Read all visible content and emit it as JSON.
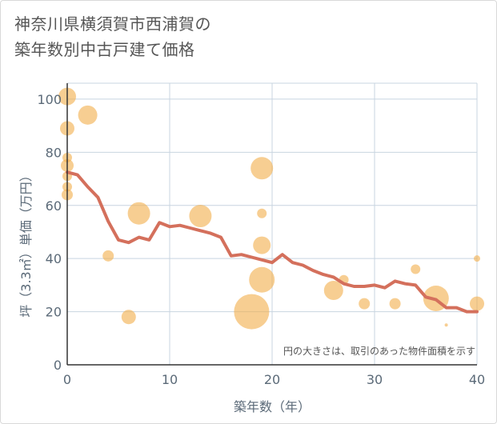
{
  "title_lines": [
    "神奈川県横須賀市西浦賀の",
    "築年数別中古戸建て価格"
  ],
  "chart_data": {
    "type": "scatter",
    "title": "神奈川県横須賀市西浦賀の築年数別中古戸建て価格",
    "xlabel": "築年数（年）",
    "ylabel": "坪（3.3㎡）単価（万円）",
    "xlim": [
      0,
      40
    ],
    "ylim": [
      0,
      106
    ],
    "x_ticks": [
      0,
      10,
      20,
      30,
      40
    ],
    "y_ticks": [
      0,
      20,
      40,
      60,
      80,
      100
    ],
    "grid": true,
    "annotation": "円の大きさは、取引のあった物件面積を示す",
    "colors": {
      "points": "#f2b04f",
      "line": "#d4705c",
      "grid": "#c8d4e0",
      "axis": "#333333"
    },
    "series": [
      {
        "type": "scatter",
        "points": [
          {
            "x": 0,
            "y": 101,
            "size": 11
          },
          {
            "x": 0,
            "y": 89,
            "size": 9
          },
          {
            "x": 0,
            "y": 78,
            "size": 6
          },
          {
            "x": 0,
            "y": 75,
            "size": 8
          },
          {
            "x": 0,
            "y": 71,
            "size": 6
          },
          {
            "x": 0,
            "y": 67,
            "size": 6
          },
          {
            "x": 0,
            "y": 64,
            "size": 7
          },
          {
            "x": 2,
            "y": 94,
            "size": 12
          },
          {
            "x": 4,
            "y": 41,
            "size": 7
          },
          {
            "x": 6,
            "y": 18,
            "size": 9
          },
          {
            "x": 7,
            "y": 57,
            "size": 14
          },
          {
            "x": 13,
            "y": 56,
            "size": 14
          },
          {
            "x": 18,
            "y": 20,
            "size": 22
          },
          {
            "x": 19,
            "y": 74,
            "size": 14
          },
          {
            "x": 19,
            "y": 57,
            "size": 6
          },
          {
            "x": 19,
            "y": 45,
            "size": 11
          },
          {
            "x": 19,
            "y": 32,
            "size": 16
          },
          {
            "x": 26,
            "y": 28,
            "size": 12
          },
          {
            "x": 27,
            "y": 32,
            "size": 6
          },
          {
            "x": 29,
            "y": 23,
            "size": 7
          },
          {
            "x": 32,
            "y": 23,
            "size": 7
          },
          {
            "x": 34,
            "y": 36,
            "size": 6
          },
          {
            "x": 36,
            "y": 25,
            "size": 16
          },
          {
            "x": 37,
            "y": 15,
            "size": 2
          },
          {
            "x": 40,
            "y": 23,
            "size": 9
          },
          {
            "x": 40,
            "y": 40,
            "size": 4
          }
        ]
      },
      {
        "type": "line",
        "x": [
          0,
          1,
          2,
          3,
          4,
          5,
          6,
          7,
          8,
          9,
          10,
          11,
          12,
          13,
          14,
          15,
          16,
          17,
          18,
          19,
          20,
          21,
          22,
          23,
          24,
          25,
          26,
          27,
          28,
          29,
          30,
          31,
          32,
          33,
          34,
          35,
          36,
          37,
          38,
          39,
          40
        ],
        "y": [
          72.5,
          71.5,
          67,
          63,
          54,
          47,
          46,
          48,
          47,
          53.5,
          52,
          52.5,
          51.5,
          50.5,
          49.5,
          48,
          41,
          41.5,
          40.5,
          39.5,
          38.5,
          41.5,
          38.5,
          37.5,
          35.5,
          34,
          33,
          30.5,
          29.5,
          29.5,
          30,
          29,
          31.5,
          30.5,
          30,
          25.5,
          24.5,
          21.5,
          21.5,
          20,
          20
        ]
      }
    ]
  }
}
